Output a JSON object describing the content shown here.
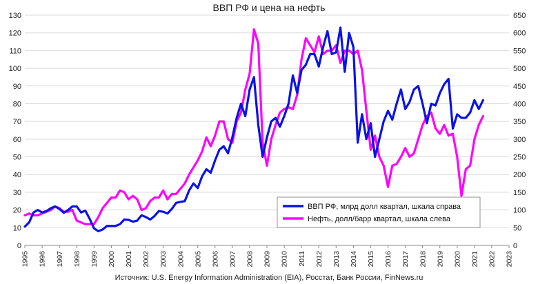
{
  "chart_data": {
    "type": "line",
    "title": "ВВП РФ и цена на нефть",
    "source": "Источник: U.S. Energy Information Administration (EIA), Росстат, Банк России, FinNews.ru",
    "x_ticks": [
      "1995",
      "1996",
      "1997",
      "1998",
      "1999",
      "2000",
      "2001",
      "2002",
      "2003",
      "2004",
      "2005",
      "2006",
      "2007",
      "2008",
      "2009",
      "2010",
      "2011",
      "2012",
      "2013",
      "2014",
      "2015",
      "2016",
      "2017",
      "2018",
      "2019",
      "2020",
      "2021",
      "2022",
      "2023"
    ],
    "xlim": [
      1995,
      2023
    ],
    "y_left": {
      "ticks": [
        0,
        10,
        20,
        30,
        40,
        50,
        60,
        70,
        80,
        90,
        100,
        110,
        120,
        130
      ],
      "lim": [
        0,
        130
      ]
    },
    "y_right": {
      "ticks": [
        0,
        50,
        100,
        150,
        200,
        250,
        300,
        350,
        400,
        450,
        500,
        550,
        600,
        650
      ],
      "lim": [
        0,
        650
      ]
    },
    "grid": "horizontal",
    "legend_position": "inside-right",
    "series": [
      {
        "name": "ВВП РФ, млрд долл квартал, шкала справа",
        "axis": "right",
        "color": "#0a12e6",
        "x": [
          1995.0,
          1995.25,
          1995.5,
          1995.75,
          1996.0,
          1996.25,
          1996.5,
          1996.75,
          1997.0,
          1997.25,
          1997.5,
          1997.75,
          1998.0,
          1998.25,
          1998.5,
          1998.75,
          1999.0,
          1999.25,
          1999.5,
          1999.75,
          2000.0,
          2000.25,
          2000.5,
          2000.75,
          2001.0,
          2001.25,
          2001.5,
          2001.75,
          2002.0,
          2002.25,
          2002.5,
          2002.75,
          2003.0,
          2003.25,
          2003.5,
          2003.75,
          2004.0,
          2004.25,
          2004.5,
          2004.75,
          2005.0,
          2005.25,
          2005.5,
          2005.75,
          2006.0,
          2006.25,
          2006.5,
          2006.75,
          2007.0,
          2007.25,
          2007.5,
          2007.75,
          2008.0,
          2008.25,
          2008.5,
          2008.75,
          2009.0,
          2009.25,
          2009.5,
          2009.75,
          2010.0,
          2010.25,
          2010.5,
          2010.75,
          2011.0,
          2011.25,
          2011.5,
          2011.75,
          2012.0,
          2012.25,
          2012.5,
          2012.75,
          2013.0,
          2013.25,
          2013.5,
          2013.75,
          2014.0,
          2014.25,
          2014.5,
          2014.75,
          2015.0,
          2015.25,
          2015.5,
          2015.75,
          2016.0,
          2016.25,
          2016.5,
          2016.75,
          2017.0,
          2017.25,
          2017.5,
          2017.75,
          2018.0,
          2018.25,
          2018.5,
          2018.75,
          2019.0,
          2019.25,
          2019.5,
          2019.75,
          2020.0,
          2020.25,
          2020.5,
          2020.75,
          2021.0,
          2021.25,
          2021.5
        ],
        "values": [
          53,
          65,
          93,
          100,
          93,
          97,
          105,
          110,
          103,
          92,
          100,
          110,
          110,
          93,
          98,
          75,
          48,
          40,
          45,
          55,
          55,
          55,
          60,
          73,
          72,
          67,
          70,
          85,
          80,
          73,
          83,
          97,
          95,
          90,
          103,
          120,
          123,
          125,
          155,
          175,
          162,
          195,
          215,
          205,
          240,
          270,
          280,
          260,
          305,
          360,
          400,
          365,
          440,
          475,
          340,
          250,
          305,
          350,
          360,
          335,
          365,
          400,
          480,
          430,
          495,
          510,
          540,
          540,
          505,
          560,
          605,
          540,
          545,
          615,
          490,
          600,
          560,
          290,
          370,
          300,
          345,
          250,
          300,
          350,
          380,
          355,
          400,
          440,
          385,
          405,
          440,
          450,
          400,
          345,
          400,
          395,
          430,
          455,
          470,
          330,
          370,
          360,
          360,
          375,
          410,
          385,
          410
        ],
        "y_values": [
          53,
          65,
          93,
          100,
          93,
          97,
          105,
          110,
          103,
          92,
          100,
          110,
          110,
          93,
          98,
          75,
          48,
          40,
          45,
          55,
          55,
          55,
          60,
          73,
          72,
          67,
          70,
          85,
          80,
          73,
          83,
          97,
          95,
          90,
          103,
          120,
          123,
          125,
          155,
          175,
          162,
          195,
          215,
          205,
          240,
          270,
          280,
          260,
          305,
          360,
          400,
          365,
          440,
          475,
          340,
          250,
          305,
          350,
          360,
          335,
          365,
          400,
          480,
          430,
          495,
          510,
          540,
          540,
          505,
          560,
          605,
          540,
          545,
          615,
          490,
          600,
          560,
          290,
          370,
          300,
          345,
          250,
          300,
          350,
          380,
          355,
          400,
          440,
          385,
          405,
          440,
          450,
          400,
          345,
          400,
          395,
          430,
          455,
          470,
          330,
          370,
          360,
          360,
          375,
          410,
          385,
          410
        ]
      },
      {
        "name": "Нефть, долл/барр квартал, шкала слева",
        "axis": "left",
        "color": "#ff00ff",
        "x": [
          1995.0,
          1995.25,
          1995.5,
          1995.75,
          1996.0,
          1996.25,
          1996.5,
          1996.75,
          1997.0,
          1997.25,
          1997.5,
          1997.75,
          1998.0,
          1998.25,
          1998.5,
          1998.75,
          1999.0,
          1999.25,
          1999.5,
          1999.75,
          2000.0,
          2000.25,
          2000.5,
          2000.75,
          2001.0,
          2001.25,
          2001.5,
          2001.75,
          2002.0,
          2002.25,
          2002.5,
          2002.75,
          2003.0,
          2003.25,
          2003.5,
          2003.75,
          2004.0,
          2004.25,
          2004.5,
          2004.75,
          2005.0,
          2005.25,
          2005.5,
          2005.75,
          2006.0,
          2006.25,
          2006.5,
          2006.75,
          2007.0,
          2007.25,
          2007.5,
          2007.75,
          2008.0,
          2008.25,
          2008.5,
          2008.75,
          2009.0,
          2009.25,
          2009.5,
          2009.75,
          2010.0,
          2010.25,
          2010.5,
          2010.75,
          2011.0,
          2011.25,
          2011.5,
          2011.75,
          2012.0,
          2012.25,
          2012.5,
          2012.75,
          2013.0,
          2013.25,
          2013.5,
          2013.75,
          2014.0,
          2014.25,
          2014.5,
          2014.75,
          2015.0,
          2015.25,
          2015.5,
          2015.75,
          2016.0,
          2016.25,
          2016.5,
          2016.75,
          2017.0,
          2017.25,
          2017.5,
          2017.75,
          2018.0,
          2018.25,
          2018.5,
          2018.75,
          2019.0,
          2019.25,
          2019.5,
          2019.75,
          2020.0,
          2020.25,
          2020.5,
          2020.75,
          2021.0,
          2021.25,
          2021.5
        ],
        "values": [
          17,
          18,
          17,
          17,
          18,
          19,
          20,
          22,
          21,
          19,
          19,
          20,
          14,
          13,
          12,
          12,
          12,
          16,
          21,
          24,
          27,
          27,
          31,
          30,
          26,
          28,
          26,
          20,
          21,
          25,
          27,
          27,
          31,
          26,
          29,
          29,
          32,
          35,
          40,
          44,
          48,
          53,
          61,
          56,
          62,
          70,
          70,
          60,
          58,
          70,
          75,
          88,
          97,
          122,
          114,
          58,
          45,
          60,
          68,
          75,
          77,
          78,
          77,
          85,
          105,
          117,
          113,
          109,
          118,
          108,
          110,
          110,
          113,
          103,
          110,
          110,
          108,
          110,
          99,
          76,
          54,
          62,
          50,
          45,
          33,
          45,
          46,
          50,
          55,
          50,
          52,
          60,
          68,
          73,
          75,
          66,
          63,
          68,
          62,
          63,
          50,
          28,
          43,
          45,
          60,
          68,
          73
        ],
        "y_values": [
          17,
          18,
          17,
          17,
          18,
          19,
          20,
          22,
          21,
          19,
          19,
          20,
          14,
          13,
          12,
          12,
          12,
          16,
          21,
          24,
          27,
          27,
          31,
          30,
          26,
          28,
          26,
          20,
          21,
          25,
          27,
          27,
          31,
          26,
          29,
          29,
          32,
          35,
          40,
          44,
          48,
          53,
          61,
          56,
          62,
          70,
          70,
          60,
          58,
          70,
          75,
          88,
          97,
          122,
          114,
          58,
          45,
          60,
          68,
          75,
          77,
          78,
          77,
          85,
          105,
          117,
          113,
          109,
          118,
          108,
          110,
          110,
          113,
          103,
          110,
          110,
          108,
          110,
          99,
          76,
          54,
          62,
          50,
          45,
          33,
          45,
          46,
          50,
          55,
          50,
          52,
          60,
          68,
          73,
          75,
          66,
          63,
          68,
          62,
          63,
          50,
          28,
          43,
          45,
          60,
          68,
          73
        ]
      }
    ]
  }
}
